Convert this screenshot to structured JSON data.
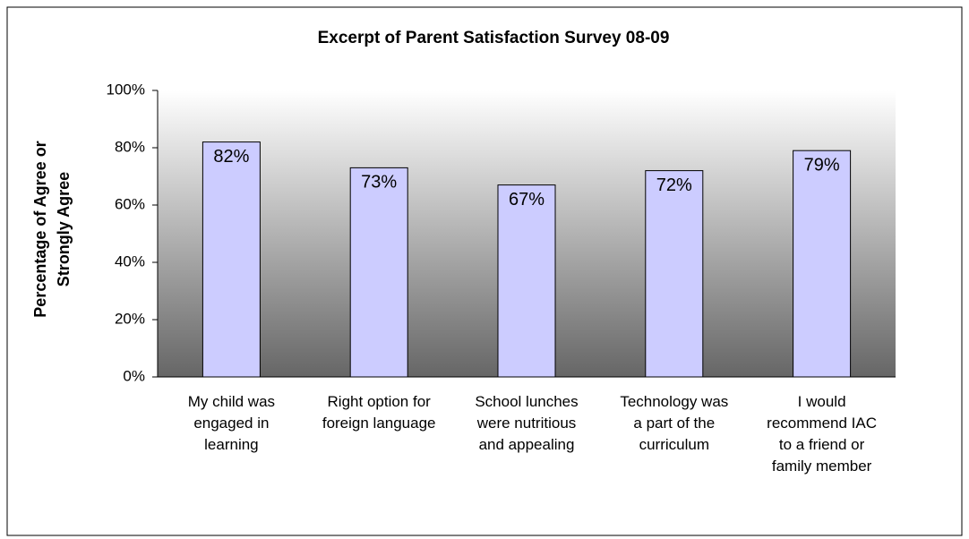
{
  "chart_data": {
    "type": "bar",
    "title": "Excerpt of Parent Satisfaction Survey 08-09",
    "ylabel": "Percentage of Agree or Strongly Agree",
    "categories": [
      "My child was engaged in learning",
      "Right option for foreign language",
      "School lunches were nutritious and appealing",
      "Technology was a part of the curriculum",
      "I would recommend IAC to a friend or family member"
    ],
    "values": [
      82,
      73,
      67,
      72,
      79
    ],
    "value_labels": [
      "82%",
      "73%",
      "67%",
      "72%",
      "79%"
    ],
    "color": "#ccccff",
    "ylim": [
      0,
      100
    ],
    "yticks": [
      {
        "value": 0,
        "label": "0%"
      },
      {
        "value": 20,
        "label": "20%"
      },
      {
        "value": 40,
        "label": "40%"
      },
      {
        "value": 60,
        "label": "60%"
      },
      {
        "value": 80,
        "label": "80%"
      },
      {
        "value": 100,
        "label": "100%"
      }
    ]
  }
}
